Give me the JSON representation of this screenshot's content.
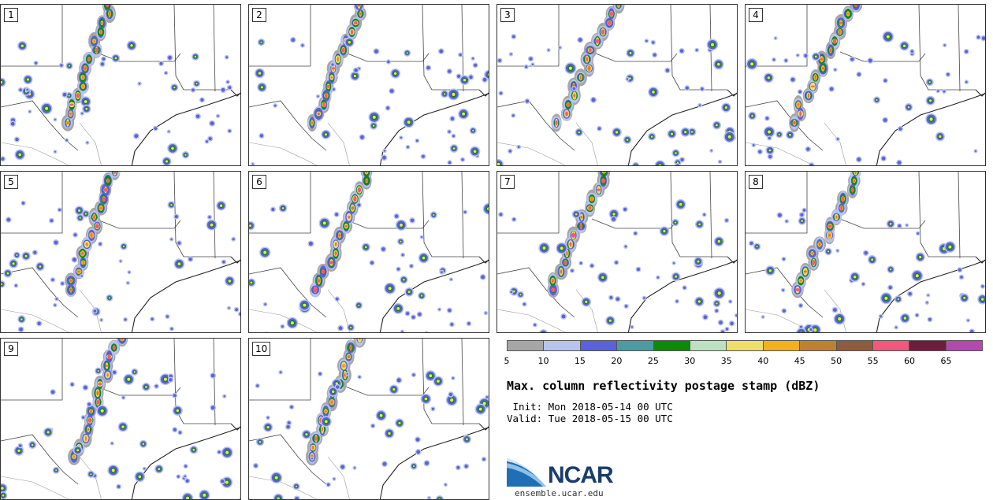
{
  "panels": [
    {
      "label": "1"
    },
    {
      "label": "2"
    },
    {
      "label": "3"
    },
    {
      "label": "4"
    },
    {
      "label": "5"
    },
    {
      "label": "6"
    },
    {
      "label": "7"
    },
    {
      "label": "8"
    },
    {
      "label": "9"
    },
    {
      "label": "10"
    }
  ],
  "colorbar": {
    "colors": [
      "#a6a6a6",
      "#b8c4ee",
      "#5a61d9",
      "#4d9ba0",
      "#0b8a0b",
      "#bfe0c0",
      "#ede06a",
      "#f0b21d",
      "#bd8231",
      "#8e5b3f",
      "#f2587c",
      "#6e1c3c",
      "#b04aae"
    ],
    "ticks": [
      "5",
      "10",
      "15",
      "20",
      "25",
      "30",
      "35",
      "40",
      "45",
      "50",
      "55",
      "60",
      "65"
    ]
  },
  "title": "Max. column reflectivity postage stamp (dBZ)",
  "init": " Init: Mon 2018-05-14 00 UTC",
  "valid": "Valid: Tue 2018-05-15 00 UTC",
  "logo": {
    "text": "NCAR",
    "site": "ensemble.ucar.edu"
  }
}
